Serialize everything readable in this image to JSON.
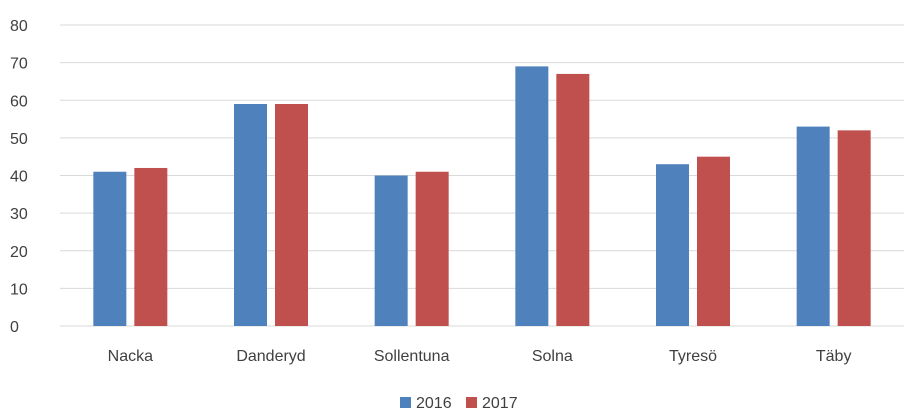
{
  "chart_data": {
    "type": "bar",
    "categories": [
      "Nacka",
      "Danderyd",
      "Sollentuna",
      "Solna",
      "Tyresö",
      "Täby"
    ],
    "series": [
      {
        "name": "2016",
        "color": "#4f81bd",
        "values": [
          41,
          59,
          40,
          69,
          43,
          53
        ]
      },
      {
        "name": "2017",
        "color": "#c0504d",
        "values": [
          42,
          59,
          41,
          67,
          45,
          52
        ]
      }
    ],
    "ylim": [
      0,
      80
    ],
    "yticks": [
      0,
      10,
      20,
      30,
      40,
      50,
      60,
      70,
      80
    ],
    "grid": true,
    "legend_position": "bottom",
    "title": "",
    "xlabel": "",
    "ylabel": ""
  }
}
